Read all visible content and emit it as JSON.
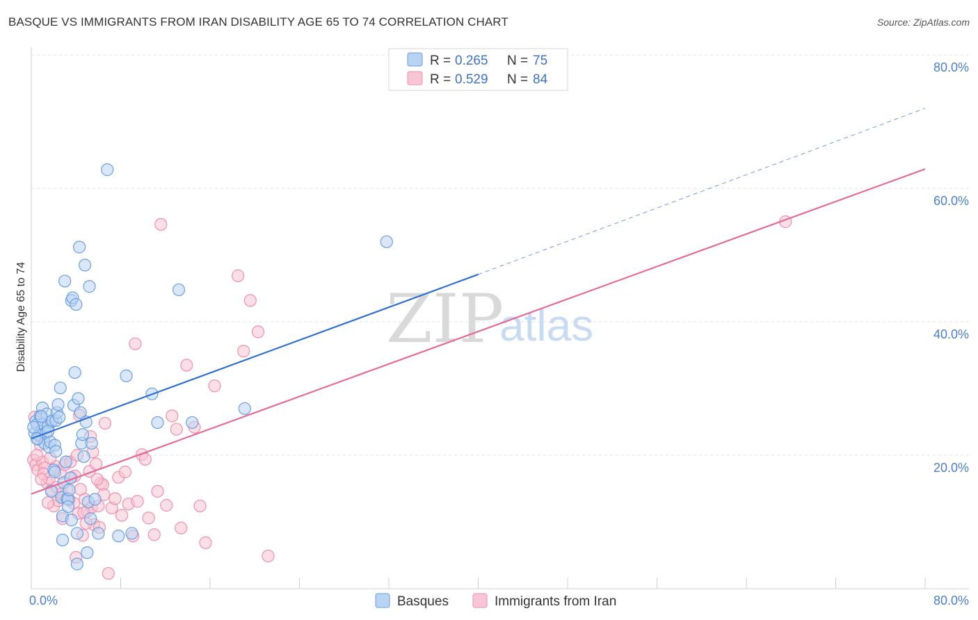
{
  "title": "BASQUE VS IMMIGRANTS FROM IRAN DISABILITY AGE 65 TO 74 CORRELATION CHART",
  "source": "Source: ZipAtlas.com",
  "watermark": {
    "zip": "ZIP",
    "atlas": "atlas"
  },
  "legend_top": [
    {
      "r_label": "R =",
      "r_value": "0.265",
      "n_label": "N =",
      "n_value": "75"
    },
    {
      "r_label": "R =",
      "r_value": "0.529",
      "n_label": "N =",
      "n_value": "84"
    }
  ],
  "chart_data": {
    "type": "scatter",
    "title": "BASQUE VS IMMIGRANTS FROM IRAN DISABILITY AGE 65 TO 74 CORRELATION CHART",
    "xlabel": "",
    "ylabel": "Disability Age 65 to 74",
    "xlim": [
      0,
      80
    ],
    "ylim": [
      0,
      80
    ],
    "x_tick_labels": [
      "0.0%",
      "80.0%"
    ],
    "y_tick_labels": [
      "20.0%",
      "40.0%",
      "60.0%",
      "80.0%"
    ],
    "y_ticks": [
      20,
      40,
      60,
      80
    ],
    "x_ticks": [
      0,
      8,
      16,
      24,
      32,
      40,
      48,
      56,
      64,
      72,
      80
    ],
    "grid": true,
    "legend_position": "top-center",
    "series": [
      {
        "name": "Basques",
        "color": "#6b9ee0",
        "fill": "#b9d3f3",
        "R": 0.265,
        "N": 75,
        "trend": {
          "x0": 0,
          "y0": 22.5,
          "x1": 40,
          "y1": 47.1,
          "dashed_to_x": 80,
          "dashed_to_y": 72.0,
          "color": "#2f6fcf"
        },
        "points": [
          [
            0.3,
            23.3
          ],
          [
            0.4,
            25.1
          ],
          [
            0.5,
            24.6
          ],
          [
            0.6,
            22.4
          ],
          [
            0.7,
            23.0
          ],
          [
            0.8,
            25.9
          ],
          [
            0.9,
            23.6
          ],
          [
            1.0,
            27.1
          ],
          [
            1.1,
            24.7
          ],
          [
            1.2,
            21.8
          ],
          [
            1.3,
            23.3
          ],
          [
            1.4,
            26.2
          ],
          [
            1.5,
            24.3
          ],
          [
            1.6,
            21.2
          ],
          [
            1.7,
            22.0
          ],
          [
            1.8,
            25.0
          ],
          [
            1.9,
            25.2
          ],
          [
            2.0,
            17.8
          ],
          [
            2.1,
            21.5
          ],
          [
            2.2,
            25.2
          ],
          [
            2.3,
            26.4
          ],
          [
            2.4,
            27.6
          ],
          [
            2.5,
            25.7
          ],
          [
            2.6,
            30.1
          ],
          [
            2.7,
            13.7
          ],
          [
            2.8,
            10.9
          ],
          [
            2.9,
            15.9
          ],
          [
            3.0,
            46.1
          ],
          [
            3.1,
            19.0
          ],
          [
            3.2,
            13.5
          ],
          [
            3.3,
            13.4
          ],
          [
            3.4,
            14.8
          ],
          [
            3.5,
            16.6
          ],
          [
            3.6,
            43.2
          ],
          [
            3.7,
            43.6
          ],
          [
            3.8,
            27.5
          ],
          [
            3.9,
            32.4
          ],
          [
            4.0,
            42.6
          ],
          [
            4.1,
            8.3
          ],
          [
            4.2,
            28.5
          ],
          [
            4.3,
            51.2
          ],
          [
            4.4,
            26.4
          ],
          [
            4.5,
            21.8
          ],
          [
            4.6,
            23.1
          ],
          [
            4.7,
            19.8
          ],
          [
            4.8,
            48.5
          ],
          [
            4.9,
            25.0
          ],
          [
            5.0,
            5.4
          ],
          [
            5.1,
            13.0
          ],
          [
            5.2,
            45.3
          ],
          [
            5.3,
            10.5
          ],
          [
            5.4,
            21.8
          ],
          [
            5.7,
            13.4
          ],
          [
            6.0,
            8.3
          ],
          [
            6.8,
            62.8
          ],
          [
            7.8,
            7.9
          ],
          [
            8.5,
            31.9
          ],
          [
            9.0,
            8.3
          ],
          [
            10.8,
            29.2
          ],
          [
            11.3,
            24.9
          ],
          [
            13.2,
            44.8
          ],
          [
            14.4,
            24.9
          ],
          [
            19.1,
            27.0
          ],
          [
            31.8,
            52.0
          ],
          [
            0.2,
            24.2
          ],
          [
            0.5,
            22.5
          ],
          [
            1.8,
            14.6
          ],
          [
            2.1,
            17.5
          ],
          [
            2.8,
            7.3
          ],
          [
            3.6,
            10.3
          ],
          [
            4.1,
            3.7
          ],
          [
            0.9,
            25.8
          ],
          [
            1.5,
            23.6
          ],
          [
            2.2,
            20.6
          ],
          [
            3.3,
            12.3
          ]
        ]
      },
      {
        "name": "Immigrants from Iran",
        "color": "#ee8fae",
        "fill": "#f7c5d4",
        "R": 0.529,
        "N": 84,
        "trend": {
          "x0": 0,
          "y0": 14.2,
          "x1": 80,
          "y1": 62.9,
          "color": "#e46b98"
        },
        "points": [
          [
            0.2,
            19.3
          ],
          [
            0.4,
            18.6
          ],
          [
            0.6,
            17.8
          ],
          [
            0.8,
            21.6
          ],
          [
            1.0,
            19.0
          ],
          [
            1.2,
            18.1
          ],
          [
            1.4,
            15.9
          ],
          [
            1.6,
            16.5
          ],
          [
            1.8,
            14.8
          ],
          [
            2.0,
            12.4
          ],
          [
            2.2,
            18.3
          ],
          [
            2.4,
            13.2
          ],
          [
            2.6,
            17.3
          ],
          [
            2.8,
            10.5
          ],
          [
            3.0,
            18.6
          ],
          [
            3.2,
            14.8
          ],
          [
            3.4,
            13.3
          ],
          [
            3.6,
            16.7
          ],
          [
            3.8,
            12.8
          ],
          [
            4.0,
            4.7
          ],
          [
            4.2,
            11.3
          ],
          [
            4.4,
            14.9
          ],
          [
            4.6,
            8.0
          ],
          [
            4.8,
            13.4
          ],
          [
            5.0,
            11.6
          ],
          [
            5.2,
            17.6
          ],
          [
            5.4,
            12.2
          ],
          [
            5.6,
            9.6
          ],
          [
            5.8,
            18.7
          ],
          [
            6.0,
            12.4
          ],
          [
            6.2,
            15.8
          ],
          [
            6.4,
            15.6
          ],
          [
            6.6,
            24.8
          ],
          [
            6.9,
            2.3
          ],
          [
            7.2,
            12.1
          ],
          [
            7.8,
            16.7
          ],
          [
            8.4,
            17.5
          ],
          [
            8.7,
            12.7
          ],
          [
            9.3,
            36.7
          ],
          [
            9.5,
            13.1
          ],
          [
            9.9,
            20.1
          ],
          [
            10.2,
            19.4
          ],
          [
            10.5,
            10.6
          ],
          [
            11.0,
            8.1
          ],
          [
            11.3,
            14.6
          ],
          [
            11.6,
            54.6
          ],
          [
            12.1,
            12.5
          ],
          [
            12.6,
            25.9
          ],
          [
            13.0,
            23.9
          ],
          [
            13.4,
            9.1
          ],
          [
            13.9,
            33.5
          ],
          [
            14.6,
            24.2
          ],
          [
            15.1,
            12.4
          ],
          [
            15.6,
            6.9
          ],
          [
            16.4,
            30.4
          ],
          [
            18.5,
            46.9
          ],
          [
            19.0,
            35.6
          ],
          [
            19.6,
            43.2
          ],
          [
            20.3,
            38.5
          ],
          [
            21.2,
            4.9
          ],
          [
            67.5,
            55.0
          ],
          [
            0.5,
            20.0
          ],
          [
            1.1,
            17.2
          ],
          [
            1.7,
            19.6
          ],
          [
            2.3,
            15.2
          ],
          [
            2.9,
            13.6
          ],
          [
            3.5,
            19.0
          ],
          [
            4.1,
            20.0
          ],
          [
            4.7,
            11.4
          ],
          [
            5.3,
            22.8
          ],
          [
            5.9,
            16.4
          ],
          [
            6.5,
            14.1
          ],
          [
            0.3,
            25.7
          ],
          [
            0.9,
            16.4
          ],
          [
            1.5,
            12.9
          ],
          [
            2.7,
            14.2
          ],
          [
            3.9,
            16.9
          ],
          [
            4.3,
            26.0
          ],
          [
            4.9,
            9.8
          ],
          [
            5.5,
            20.5
          ],
          [
            6.1,
            9.2
          ],
          [
            7.5,
            13.5
          ],
          [
            8.1,
            11.0
          ],
          [
            9.1,
            7.9
          ]
        ]
      }
    ]
  }
}
